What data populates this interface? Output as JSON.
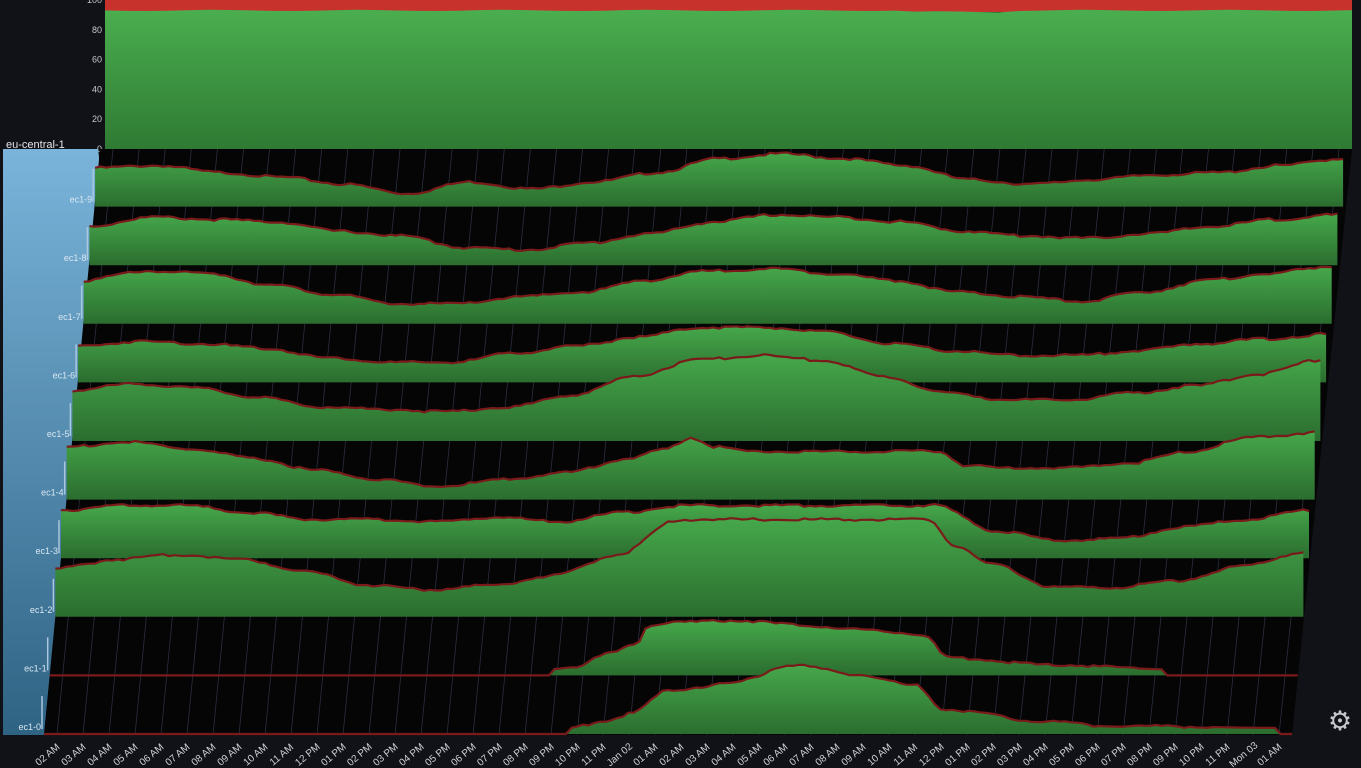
{
  "chart_data": {
    "type": "area",
    "region": "eu-central-1",
    "top_panel": {
      "ylim": [
        0,
        100
      ],
      "yticks": [
        "0",
        "20",
        "40",
        "60",
        "80",
        "100"
      ],
      "series": [
        {
          "name": "",
          "color": "#4aa84d",
          "level": 93
        },
        {
          "name": "",
          "color": "#d03a30",
          "level": 7
        }
      ]
    },
    "hosts": [
      {
        "label": "ec1-9",
        "points": [
          [
            0,
            0.7
          ],
          [
            0.05,
            0.75
          ],
          [
            0.1,
            0.6
          ],
          [
            0.15,
            0.5
          ],
          [
            0.2,
            0.35
          ],
          [
            0.25,
            0.15
          ],
          [
            0.3,
            0.4
          ],
          [
            0.35,
            0.25
          ],
          [
            0.4,
            0.4
          ],
          [
            0.45,
            0.6
          ],
          [
            0.5,
            0.9
          ],
          [
            0.55,
            1.0
          ],
          [
            0.6,
            0.9
          ],
          [
            0.65,
            0.75
          ],
          [
            0.7,
            0.45
          ],
          [
            0.75,
            0.35
          ],
          [
            0.8,
            0.45
          ],
          [
            0.85,
            0.55
          ],
          [
            0.9,
            0.6
          ],
          [
            0.95,
            0.75
          ],
          [
            1,
            0.9
          ]
        ]
      },
      {
        "label": "ec1-8",
        "points": [
          [
            0,
            0.7
          ],
          [
            0.05,
            0.9
          ],
          [
            0.1,
            0.85
          ],
          [
            0.15,
            0.8
          ],
          [
            0.2,
            0.6
          ],
          [
            0.25,
            0.5
          ],
          [
            0.3,
            0.25
          ],
          [
            0.35,
            0.2
          ],
          [
            0.4,
            0.35
          ],
          [
            0.45,
            0.55
          ],
          [
            0.5,
            0.8
          ],
          [
            0.55,
            0.95
          ],
          [
            0.6,
            0.9
          ],
          [
            0.65,
            0.8
          ],
          [
            0.7,
            0.6
          ],
          [
            0.75,
            0.5
          ],
          [
            0.8,
            0.45
          ],
          [
            0.85,
            0.55
          ],
          [
            0.9,
            0.7
          ],
          [
            0.95,
            0.85
          ],
          [
            1,
            0.95
          ]
        ]
      },
      {
        "label": "ec1-7",
        "points": [
          [
            0,
            0.8
          ],
          [
            0.05,
            1.0
          ],
          [
            0.1,
            0.95
          ],
          [
            0.15,
            0.7
          ],
          [
            0.2,
            0.5
          ],
          [
            0.25,
            0.3
          ],
          [
            0.3,
            0.3
          ],
          [
            0.35,
            0.45
          ],
          [
            0.4,
            0.55
          ],
          [
            0.45,
            0.8
          ],
          [
            0.5,
            1.0
          ],
          [
            0.55,
            1.05
          ],
          [
            0.6,
            0.95
          ],
          [
            0.65,
            0.8
          ],
          [
            0.7,
            0.55
          ],
          [
            0.75,
            0.45
          ],
          [
            0.8,
            0.35
          ],
          [
            0.85,
            0.55
          ],
          [
            0.9,
            0.8
          ],
          [
            0.95,
            0.95
          ],
          [
            1,
            1.1
          ]
        ]
      },
      {
        "label": "ec1-6",
        "points": [
          [
            0,
            0.65
          ],
          [
            0.05,
            0.75
          ],
          [
            0.1,
            0.7
          ],
          [
            0.15,
            0.6
          ],
          [
            0.2,
            0.4
          ],
          [
            0.25,
            0.3
          ],
          [
            0.3,
            0.3
          ],
          [
            0.35,
            0.5
          ],
          [
            0.4,
            0.65
          ],
          [
            0.45,
            0.85
          ],
          [
            0.5,
            1.05
          ],
          [
            0.55,
            1.05
          ],
          [
            0.6,
            0.95
          ],
          [
            0.65,
            0.7
          ],
          [
            0.7,
            0.55
          ],
          [
            0.75,
            0.45
          ],
          [
            0.8,
            0.45
          ],
          [
            0.85,
            0.55
          ],
          [
            0.9,
            0.7
          ],
          [
            0.95,
            0.8
          ],
          [
            1,
            0.9
          ]
        ]
      },
      {
        "label": "ec1-5",
        "points": [
          [
            0,
            0.95
          ],
          [
            0.05,
            1.1
          ],
          [
            0.1,
            1.0
          ],
          [
            0.15,
            0.8
          ],
          [
            0.2,
            0.6
          ],
          [
            0.25,
            0.55
          ],
          [
            0.3,
            0.5
          ],
          [
            0.35,
            0.6
          ],
          [
            0.4,
            0.85
          ],
          [
            0.45,
            1.25
          ],
          [
            0.5,
            1.6
          ],
          [
            0.55,
            1.7
          ],
          [
            0.6,
            1.6
          ],
          [
            0.65,
            1.25
          ],
          [
            0.7,
            0.9
          ],
          [
            0.75,
            0.75
          ],
          [
            0.8,
            0.75
          ],
          [
            0.85,
            0.9
          ],
          [
            0.9,
            1.05
          ],
          [
            0.95,
            1.3
          ],
          [
            1,
            1.6
          ]
        ]
      },
      {
        "label": "ec1-4",
        "points": [
          [
            0,
            1.0
          ],
          [
            0.05,
            1.1
          ],
          [
            0.1,
            0.95
          ],
          [
            0.15,
            0.75
          ],
          [
            0.2,
            0.5
          ],
          [
            0.25,
            0.3
          ],
          [
            0.3,
            0.15
          ],
          [
            0.35,
            0.3
          ],
          [
            0.4,
            0.45
          ],
          [
            0.45,
            0.75
          ],
          [
            0.48,
            0.95
          ],
          [
            0.5,
            1.2
          ],
          [
            0.52,
            1.0
          ],
          [
            0.55,
            0.9
          ],
          [
            0.6,
            0.9
          ],
          [
            0.7,
            0.9
          ],
          [
            0.72,
            0.6
          ],
          [
            0.75,
            0.55
          ],
          [
            0.8,
            0.55
          ],
          [
            0.85,
            0.65
          ],
          [
            0.9,
            0.9
          ],
          [
            0.95,
            1.2
          ],
          [
            1,
            1.3
          ]
        ]
      },
      {
        "label": "ec1-3",
        "points": [
          [
            0,
            0.9
          ],
          [
            0.05,
            1.0
          ],
          [
            0.1,
            1.0
          ],
          [
            0.15,
            0.85
          ],
          [
            0.2,
            0.7
          ],
          [
            0.25,
            0.7
          ],
          [
            0.3,
            0.65
          ],
          [
            0.35,
            0.75
          ],
          [
            0.4,
            0.65
          ],
          [
            0.45,
            0.85
          ],
          [
            0.5,
            1.0
          ],
          [
            0.55,
            1.0
          ],
          [
            0.65,
            1.0
          ],
          [
            0.7,
            1.0
          ],
          [
            0.75,
            0.45
          ],
          [
            0.8,
            0.25
          ],
          [
            0.85,
            0.3
          ],
          [
            0.9,
            0.55
          ],
          [
            0.95,
            0.7
          ],
          [
            1,
            0.9
          ]
        ]
      },
      {
        "label": "ec1-2",
        "points": [
          [
            0,
            0.9
          ],
          [
            0.05,
            1.1
          ],
          [
            0.1,
            1.2
          ],
          [
            0.15,
            1.1
          ],
          [
            0.2,
            0.85
          ],
          [
            0.25,
            0.55
          ],
          [
            0.3,
            0.45
          ],
          [
            0.35,
            0.55
          ],
          [
            0.4,
            0.75
          ],
          [
            0.45,
            1.2
          ],
          [
            0.5,
            1.95
          ],
          [
            0.55,
            1.95
          ],
          [
            0.6,
            1.95
          ],
          [
            0.7,
            1.95
          ],
          [
            0.72,
            1.4
          ],
          [
            0.75,
            1.0
          ],
          [
            0.8,
            0.5
          ],
          [
            0.85,
            0.5
          ],
          [
            0.9,
            0.65
          ],
          [
            0.95,
            0.95
          ],
          [
            1,
            1.25
          ]
        ]
      },
      {
        "label": "ec1-1",
        "points": [
          [
            0,
            0
          ],
          [
            0.4,
            0
          ],
          [
            0.42,
            0.05
          ],
          [
            0.45,
            0.35
          ],
          [
            0.47,
            0.55
          ],
          [
            0.48,
            0.95
          ],
          [
            0.5,
            1.0
          ],
          [
            0.55,
            1.05
          ],
          [
            0.6,
            0.95
          ],
          [
            0.65,
            0.85
          ],
          [
            0.7,
            0.75
          ],
          [
            0.72,
            0.25
          ],
          [
            0.8,
            0.1
          ],
          [
            0.9,
            0
          ],
          [
            1,
            0
          ]
        ]
      },
      {
        "label": "ec1-0",
        "points": [
          [
            0,
            0
          ],
          [
            0.42,
            0
          ],
          [
            0.45,
            0.15
          ],
          [
            0.47,
            0.3
          ],
          [
            0.5,
            0.8
          ],
          [
            0.55,
            0.95
          ],
          [
            0.6,
            1.35
          ],
          [
            0.65,
            1.15
          ],
          [
            0.7,
            0.9
          ],
          [
            0.72,
            0.4
          ],
          [
            0.8,
            0.15
          ],
          [
            0.85,
            0.05
          ],
          [
            1,
            0
          ]
        ]
      }
    ],
    "x_ticks": [
      "02 AM",
      "03 AM",
      "04 AM",
      "05 AM",
      "06 AM",
      "07 AM",
      "08 AM",
      "09 AM",
      "10 AM",
      "11 AM",
      "12 PM",
      "01 PM",
      "02 PM",
      "03 PM",
      "04 PM",
      "05 PM",
      "06 PM",
      "07 PM",
      "08 PM",
      "09 PM",
      "10 PM",
      "11 PM",
      "Jan 02",
      "01 AM",
      "02 AM",
      "03 AM",
      "04 AM",
      "05 AM",
      "06 AM",
      "07 AM",
      "08 AM",
      "09 AM",
      "10 AM",
      "11 AM",
      "12 PM",
      "01 PM",
      "02 PM",
      "03 PM",
      "04 PM",
      "05 PM",
      "06 PM",
      "07 PM",
      "08 PM",
      "09 PM",
      "10 PM",
      "11 PM",
      "Mon 03",
      "01 AM"
    ],
    "colors": {
      "fill": "#3f9a44",
      "fill_dark": "#2c6e30",
      "line": "#7a1a1a",
      "region_bar": "#5e98c0"
    }
  },
  "settings": {
    "icon": "gear-icon",
    "glyph": "⚙"
  }
}
